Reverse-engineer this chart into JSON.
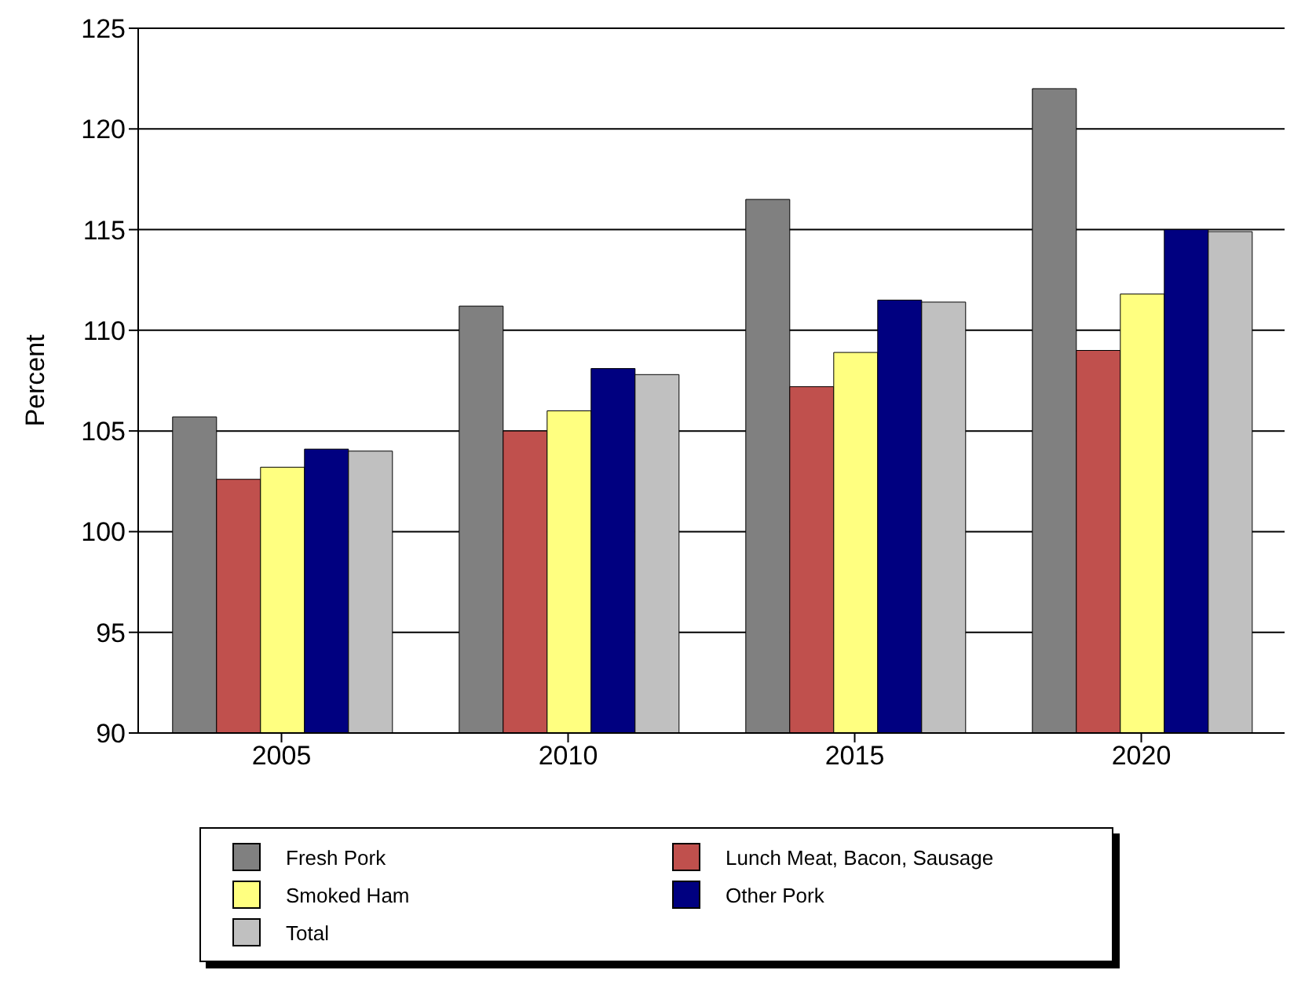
{
  "chart_data": {
    "type": "bar",
    "ylabel": "Percent",
    "categories": [
      "2005",
      "2010",
      "2015",
      "2020"
    ],
    "series": [
      {
        "name": "Fresh Pork",
        "color": "#808080",
        "values": [
          105.7,
          111.2,
          116.5,
          122.0
        ]
      },
      {
        "name": "Lunch Meat, Bacon, Sausage",
        "color": "#c0504d",
        "values": [
          102.6,
          105.0,
          107.2,
          109.0
        ]
      },
      {
        "name": "Smoked Ham",
        "color": "#ffff80",
        "values": [
          103.2,
          106.0,
          108.9,
          111.8
        ]
      },
      {
        "name": "Other Pork",
        "color": "#000080",
        "values": [
          104.1,
          108.1,
          111.5,
          115.0
        ]
      },
      {
        "name": "Total",
        "color": "#c0c0c0",
        "values": [
          104.0,
          107.8,
          111.4,
          114.9
        ]
      }
    ],
    "ylim": [
      90,
      125
    ],
    "yticks": [
      90,
      95,
      100,
      105,
      110,
      115,
      120,
      125
    ],
    "grid": "y",
    "legend": "bottom"
  }
}
